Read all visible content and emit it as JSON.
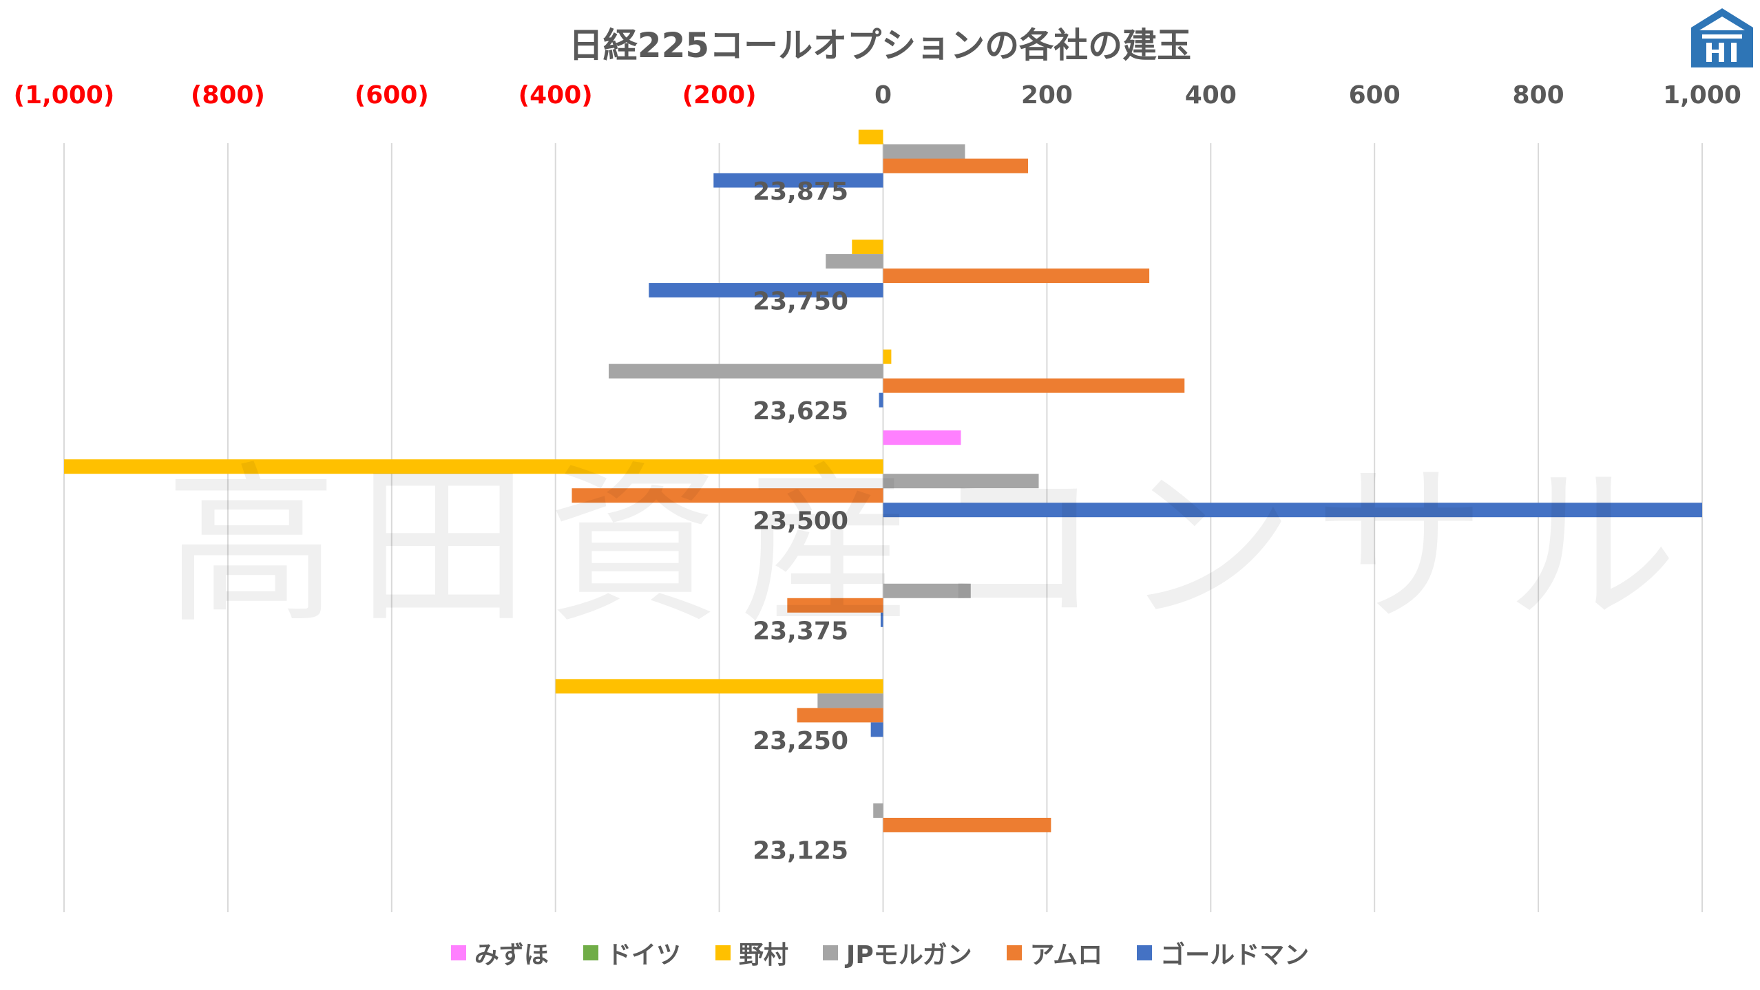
{
  "header": {
    "title": "日経225コールオプションの各社の建玉",
    "watermark": "高田資産コンサル"
  },
  "colors": {
    "negative_tick": "#ff0000",
    "tick": "#595959",
    "grid": "#d9d9d9",
    "logo": "#2e75b6"
  },
  "chart_data": {
    "type": "bar",
    "orientation": "horizontal",
    "title": "日経225コールオプションの各社の建玉",
    "x_axis_position": "top",
    "xlim": [
      -1000,
      1000
    ],
    "x_ticks": [
      -1000,
      -800,
      -600,
      -400,
      -200,
      0,
      200,
      400,
      600,
      800,
      1000
    ],
    "x_tick_labels": [
      "(1,000)",
      "(800)",
      "(600)",
      "(400)",
      "(200)",
      "0",
      "200",
      "400",
      "600",
      "800",
      "1,000"
    ],
    "categories": [
      "23,875",
      "23,750",
      "23,625",
      "23,500",
      "23,375",
      "23,250",
      "23,125"
    ],
    "grid": true,
    "legend_position": "bottom",
    "series": [
      {
        "name": "みずほ",
        "color": "#ff80ff",
        "values": [
          0,
          0,
          0,
          95,
          0,
          0,
          0
        ]
      },
      {
        "name": "ドイツ",
        "color": "#70ad47",
        "values": [
          0,
          0,
          0,
          0,
          0,
          0,
          0
        ]
      },
      {
        "name": "野村",
        "color": "#ffc000",
        "values": [
          -30,
          -38,
          10,
          -1000,
          0,
          -400,
          0
        ]
      },
      {
        "name": "JPモルガン",
        "color": "#a5a5a5",
        "values": [
          100,
          -70,
          -335,
          190,
          107,
          -80,
          -12
        ]
      },
      {
        "name": "アムロ",
        "color": "#ed7d31",
        "values": [
          177,
          325,
          368,
          -380,
          -117,
          -105,
          205
        ]
      },
      {
        "name": "ゴールドマン",
        "color": "#4472c4",
        "values": [
          -207,
          -286,
          -5,
          1000,
          -3,
          -15,
          0
        ]
      }
    ]
  }
}
